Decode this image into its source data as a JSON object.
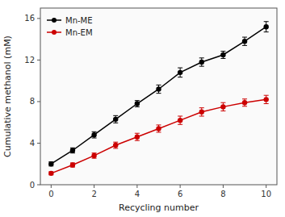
{
  "chart_data": {
    "type": "line",
    "xlabel": "Recycling number",
    "ylabel": "Cumulative methanol (mM)",
    "x": [
      0,
      1,
      2,
      3,
      4,
      5,
      6,
      7,
      8,
      9,
      10
    ],
    "series": [
      {
        "name": "Mn-ME",
        "color": "#000000",
        "marker": "circle",
        "values": [
          2.0,
          3.3,
          4.8,
          6.3,
          7.8,
          9.2,
          10.8,
          11.8,
          12.5,
          13.8,
          15.2
        ],
        "errors": [
          0.2,
          0.25,
          0.3,
          0.35,
          0.3,
          0.4,
          0.45,
          0.4,
          0.35,
          0.4,
          0.5
        ]
      },
      {
        "name": "Mn-EM",
        "color": "#cc0000",
        "marker": "circle",
        "values": [
          1.1,
          1.9,
          2.8,
          3.8,
          4.6,
          5.4,
          6.2,
          7.0,
          7.5,
          7.9,
          8.2
        ],
        "errors": [
          0.15,
          0.2,
          0.25,
          0.3,
          0.35,
          0.35,
          0.4,
          0.4,
          0.4,
          0.35,
          0.4
        ]
      }
    ],
    "xlim": [
      -0.5,
      10.5
    ],
    "ylim": [
      0,
      17
    ],
    "xticks": [
      0,
      2,
      4,
      6,
      8,
      10
    ],
    "yticks": [
      0,
      4,
      8,
      12,
      16
    ],
    "grid": false,
    "legend": "upper left"
  }
}
